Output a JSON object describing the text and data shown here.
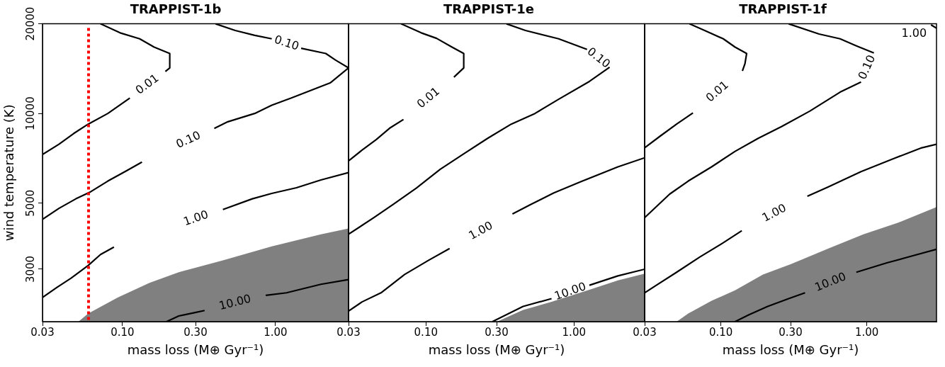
{
  "chart_data": [
    {
      "type": "line",
      "title": "TRAPPIST-1b",
      "xlabel": "mass loss (M⊕ Gyr⁻¹)",
      "ylabel": "wind temperature (K)",
      "log": "xy",
      "grid": false,
      "marker": "none",
      "line_style": "solid",
      "xlim": [
        0.03,
        3
      ],
      "ylim": [
        2000,
        20000
      ],
      "xticks": [
        {
          "value": 0.03,
          "label": "0.03"
        },
        {
          "value": 0.1,
          "label": "0.10"
        },
        {
          "value": 0.3,
          "label": "0.30"
        },
        {
          "value": 1,
          "label": "1.00"
        }
      ],
      "yticks": [
        3000,
        5000,
        10000,
        20000
      ],
      "series": [
        {
          "type": "area",
          "color": "#808080",
          "x": [
            0.0515,
            0.0597,
            0.0929,
            0.15,
            0.233,
            0.453,
            0.945,
            1.98,
            3.0
          ],
          "values": [
            2000,
            2130,
            2410,
            2700,
            2930,
            3210,
            3580,
            3930,
            4110
          ]
        },
        {
          "name": "0.01",
          "color": "#000000",
          "x": [
            0.0718,
            0.0964,
            0.1294,
            0.161,
            0.2036,
            0.2036,
            0.1906,
            null,
            0.1117,
            0.0802,
            0.0597,
            0.0479,
            0.0384,
            0.03
          ],
          "values": [
            20000,
            18650,
            17810,
            16700,
            15900,
            14220,
            13830,
            null,
            11270,
            10000,
            9210,
            8560,
            7880,
            7280
          ]
        },
        {
          "name": "0.10",
          "color": "#000000",
          "x": [
            0.406,
            0.545,
            0.731,
            0.945,
            null,
            1.47,
            2.13,
            2.47,
            3.0
          ],
          "values": [
            20000,
            19000,
            18300,
            17810,
            null,
            16550,
            15900,
            15100,
            14220
          ]
        },
        {
          "name": "0.10",
          "color": "#000000",
          "x": [
            3.0,
            2.29,
            1.27,
            0.945,
            0.731,
            0.488,
            0.398,
            null,
            0.134,
            0.1038,
            0.0802,
            0.0619,
            0.0496,
            0.0384,
            0.03
          ],
          "values": [
            14220,
            12690,
            11270,
            10660,
            10000,
            9380,
            8910,
            null,
            6870,
            6380,
            5930,
            5460,
            5170,
            4800,
            4410
          ]
        },
        {
          "name": "1.00",
          "color": "#000000",
          "x": [
            3.0,
            1.98,
            1.37,
            0.945,
            0.705,
            0.453,
            null,
            0.0879,
            0.0718,
            0.0597,
            0.0461,
            0.037,
            0.03
          ],
          "values": [
            6330,
            5980,
            5630,
            5390,
            5170,
            4760,
            null,
            3560,
            3360,
            3090,
            2800,
            2600,
            2410
          ]
        },
        {
          "name": "10.00",
          "color": "#000000",
          "x": [
            3.0,
            1.98,
            1.18,
            0.863,
            null,
            0.344,
            0.291,
            0.233,
            0.194
          ],
          "values": [
            2770,
            2670,
            2500,
            2450,
            null,
            2180,
            2140,
            2090,
            2000
          ]
        }
      ],
      "ref_lines": [
        {
          "axis": "x",
          "value": 0.06,
          "color": "#ff0000",
          "line_style": "dotted"
        }
      ]
    },
    {
      "type": "line",
      "title": "TRAPPIST-1e",
      "xlabel": "mass loss (M⊕ Gyr⁻¹)",
      "log": "xy",
      "grid": false,
      "marker": "none",
      "line_style": "solid",
      "tick_labels": "x",
      "xlim": [
        0.03,
        3
      ],
      "ylim": [
        2000,
        20000
      ],
      "xticks": [
        {
          "value": 0.03,
          "label": "0.03"
        },
        {
          "value": 0.1,
          "label": "0.10"
        },
        {
          "value": 0.3,
          "label": "0.30"
        },
        {
          "value": 1,
          "label": "1.00"
        }
      ],
      "yticks": [
        3000,
        5000,
        10000,
        20000
      ],
      "series": [
        {
          "type": "area",
          "color": "#808080",
          "x": [
            0.302,
            0.453,
            0.705,
            1.27,
            1.98,
            3.0
          ],
          "values": [
            2000,
            2190,
            2330,
            2560,
            2750,
            2900
          ]
        },
        {
          "name": "0.01",
          "color": "#000000",
          "x": [
            0.0679,
            0.0929,
            0.118,
            0.15,
            0.18,
            0.18,
            0.1545,
            null,
            0.0705,
            0.0575,
            0.0461,
            0.037,
            0.03
          ],
          "values": [
            20000,
            18650,
            17870,
            16700,
            15900,
            14220,
            13240,
            null,
            9550,
            8960,
            8170,
            7530,
            6930
          ]
        },
        {
          "name": "0.10",
          "color": "#000000",
          "x": [
            0.35,
            0.47,
            0.787,
            1.225,
            null,
            1.74,
            1.27,
            0.787,
            0.545,
            0.377,
            0.261,
            0.18,
            0.125,
            0.0863,
            0.0597,
            0.0445,
            0.03
          ],
          "values": [
            20000,
            19000,
            17810,
            16400,
            null,
            14300,
            12810,
            11160,
            10000,
            9210,
            8250,
            7320,
            6500,
            5620,
            4940,
            4470,
            3930
          ]
        },
        {
          "name": "1.00",
          "color": "#000000",
          "x": [
            3.0,
            1.98,
            1.14,
            0.731,
            0.506,
            0.384,
            null,
            0.1445,
            0.1037,
            0.0718,
            0.0497,
            0.037,
            0.03
          ],
          "values": [
            7100,
            6620,
            5930,
            5410,
            4940,
            4600,
            null,
            3520,
            3210,
            2880,
            2500,
            2330,
            2170
          ]
        },
        {
          "name": "10.00",
          "color": "#000000",
          "x": [
            3.0,
            1.98,
            1.27,
            null,
            0.705,
            0.453,
            0.281
          ],
          "values": [
            3000,
            2850,
            2650,
            null,
            2390,
            2250,
            2000
          ]
        }
      ]
    },
    {
      "type": "line",
      "title": "TRAPPIST-1f",
      "xlabel": "mass loss (M⊕ Gyr⁻¹)",
      "log": "xy",
      "grid": false,
      "marker": "none",
      "line_style": "solid",
      "tick_labels": "x",
      "xlim": [
        0.03,
        3
      ],
      "ylim": [
        2000,
        20000
      ],
      "xticks": [
        {
          "value": 0.03,
          "label": "0.03"
        },
        {
          "value": 0.1,
          "label": "0.10"
        },
        {
          "value": 0.3,
          "label": "0.30"
        },
        {
          "value": 1,
          "label": "1.00"
        }
      ],
      "yticks": [
        3000,
        5000,
        10000,
        20000
      ],
      "series": [
        {
          "type": "area",
          "color": "#808080",
          "x": [
            0.0497,
            0.0597,
            0.0863,
            0.125,
            0.194,
            0.302,
            0.545,
            0.946,
            1.64,
            3.0
          ],
          "values": [
            2000,
            2130,
            2350,
            2550,
            2880,
            3120,
            3520,
            3930,
            4300,
            4850
          ]
        },
        {
          "name": "0.01",
          "color": "#000000",
          "x": [
            0.0608,
            0.0773,
            0.1037,
            0.125,
            0.15,
            0.1461,
            0.1403,
            null,
            0.0643,
            0.0497,
            0.0384,
            0.03
          ],
          "values": [
            20000,
            19000,
            17810,
            16700,
            15900,
            14690,
            13900,
            null,
            10040,
            9210,
            8400,
            7670
          ]
        },
        {
          "name": "0.10",
          "color": "#000000",
          "x": [
            0.291,
            0.47,
            0.655,
            0.847,
            1.117,
            null,
            0.912,
            0.655,
            0.406,
            0.261,
            0.18,
            0.125,
            0.0863,
            0.0597,
            0.0445,
            0.03
          ],
          "values": [
            20000,
            18480,
            17810,
            16870,
            15960,
            null,
            12760,
            11790,
            10180,
            9040,
            8250,
            7460,
            6620,
            5930,
            5360,
            4470
          ]
        },
        {
          "name": "1.00",
          "color": "#000000",
          "x": [
            3.0,
            2.38,
            1.53,
            0.912,
            0.545,
            0.391,
            null,
            0.139,
            0.1037,
            0.0718,
            0.0497,
            0.0356,
            0.03
          ],
          "values": [
            7880,
            7670,
            7060,
            6380,
            5670,
            5270,
            null,
            4040,
            3680,
            3300,
            2930,
            2640,
            2500
          ]
        },
        {
          "name": "10.00",
          "color": "#000000",
          "x": [
            3.0,
            1.98,
            1.37,
            0.847,
            null,
            0.377,
            0.291,
            0.209,
            0.1556,
            0.125
          ],
          "values": [
            3500,
            3310,
            3150,
            2930,
            null,
            2500,
            2390,
            2250,
            2110,
            2000
          ]
        },
        {
          "name": "1.00",
          "color": "#000000",
          "x": [
            2.75,
            3.0
          ],
          "values": [
            19850,
            19320
          ]
        }
      ]
    }
  ]
}
